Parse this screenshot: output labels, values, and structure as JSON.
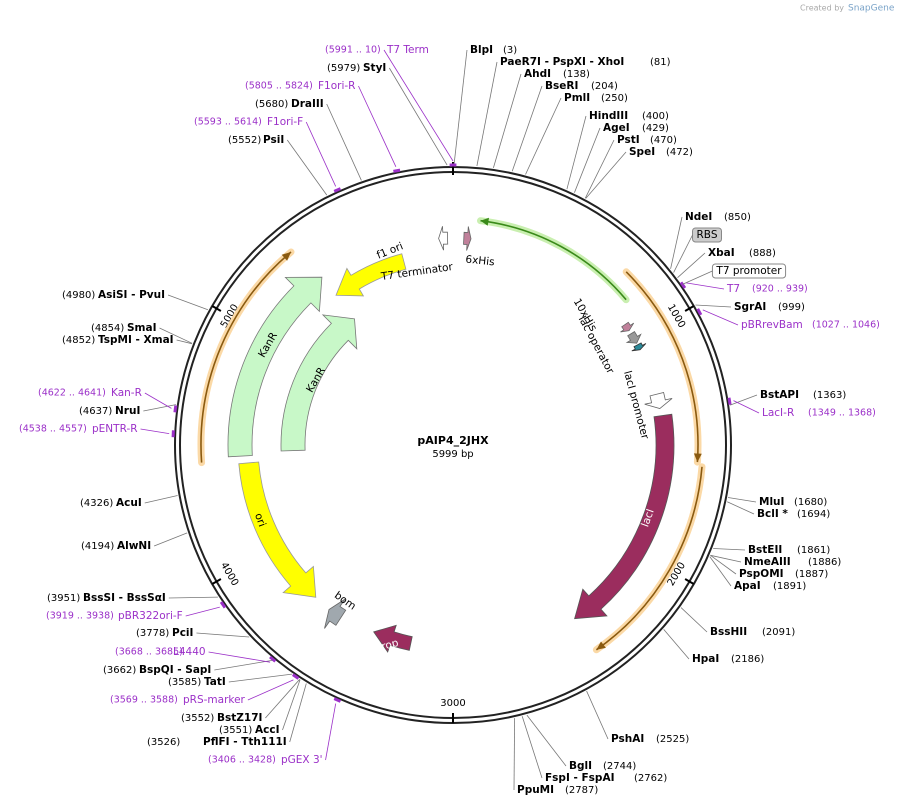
{
  "header": {
    "credit": "Created by",
    "brand": "SnapGene"
  },
  "map": {
    "name": "pAIP4_2JHX",
    "length": "5999 bp"
  },
  "scale_ticks": [
    "1000",
    "2000",
    "3000",
    "4000",
    "5000"
  ],
  "enzymes": [
    {
      "name": "BlpI",
      "pos": "(3)"
    },
    {
      "name": "PaeR7I   - PspXI   - XhoI",
      "pos": "(81)"
    },
    {
      "name": "AhdI",
      "pos": "(138)"
    },
    {
      "name": "BseRI",
      "pos": "(204)"
    },
    {
      "name": "PmlI",
      "pos": "(250)"
    },
    {
      "name": "HindIII",
      "pos": "(400)"
    },
    {
      "name": "AgeI",
      "pos": "(429)"
    },
    {
      "name": "PstI",
      "pos": "(470)"
    },
    {
      "name": "SpeI",
      "pos": "(472)"
    },
    {
      "name": "NdeI",
      "pos": "(850)"
    },
    {
      "name": "XbaI",
      "pos": "(888)"
    },
    {
      "name": "SgrAI",
      "pos": "(999)"
    },
    {
      "name": "BstAPI",
      "pos": "(1363)"
    },
    {
      "name": "MluI",
      "pos": "(1680)"
    },
    {
      "name": "BclI *",
      "pos": "(1694)"
    },
    {
      "name": "BstEII",
      "pos": "(1861)"
    },
    {
      "name": "NmeAIII",
      "pos": "(1886)"
    },
    {
      "name": "PspOMI",
      "pos": "(1887)"
    },
    {
      "name": "ApaI",
      "pos": "(1891)"
    },
    {
      "name": "BssHII",
      "pos": "(2091)"
    },
    {
      "name": "HpaI",
      "pos": "(2186)"
    },
    {
      "name": "PshAI",
      "pos": "(2525)"
    },
    {
      "name": "BglI",
      "pos": "(2744)"
    },
    {
      "name": "FspI   - FspAI",
      "pos": "(2762)"
    },
    {
      "name": "PpuMI",
      "pos": "(2787)"
    },
    {
      "name": "StyI",
      "pos": "(5979)"
    },
    {
      "name": "DraIII",
      "pos": "(5680)"
    },
    {
      "name": "PsiI",
      "pos": "(5552)"
    },
    {
      "name": "AsiSI   - PvuI",
      "pos": "(4980)"
    },
    {
      "name": "SmaI",
      "pos": "(4854)"
    },
    {
      "name": "TspMI   - XmaI",
      "pos": "(4852)"
    },
    {
      "name": "NruI",
      "pos": "(4637)"
    },
    {
      "name": "AcuI",
      "pos": "(4326)"
    },
    {
      "name": "AlwNI",
      "pos": "(4194)"
    },
    {
      "name": "BssSI   - BssSαI",
      "pos": "(3951)"
    },
    {
      "name": "PciI",
      "pos": "(3778)"
    },
    {
      "name": "BspQI   - SapI",
      "pos": "(3662)"
    },
    {
      "name": "TatI",
      "pos": "(3585)"
    },
    {
      "name": "BstZ17I",
      "pos": "(3552)"
    },
    {
      "name": "AccI",
      "pos": "(3551)"
    },
    {
      "name": "PflFI   - Tth111I",
      "pos": "(3526)"
    }
  ],
  "primers": [
    {
      "name": "T7",
      "range": "(920 .. 939)"
    },
    {
      "name": "pBRrevBam",
      "range": "(1027 .. 1046)"
    },
    {
      "name": "LacI-R",
      "range": "(1349 .. 1368)"
    },
    {
      "name": "T7 Term",
      "range": "(5991 .. 10)"
    },
    {
      "name": "F1ori-R",
      "range": "(5805 .. 5824)"
    },
    {
      "name": "F1ori-F",
      "range": "(5593 .. 5614)"
    },
    {
      "name": "Kan-R",
      "range": "(4622 .. 4641)"
    },
    {
      "name": "pENTR-R",
      "range": "(4538 .. 4557)"
    },
    {
      "name": "pBR322ori-F",
      "range": "(3919 .. 3938)"
    },
    {
      "name": "L4440",
      "range": "(3668 .. 3685)"
    },
    {
      "name": "pRS-marker",
      "range": "(3569 .. 3588)"
    },
    {
      "name": "pGEX 3'",
      "range": "(3406 .. 3428)"
    }
  ],
  "features": [
    {
      "label": "f1 ori"
    },
    {
      "label": "T7 terminator"
    },
    {
      "label": "6xHis"
    },
    {
      "label": "10xHis"
    },
    {
      "label": "lac operator"
    },
    {
      "label": "lacI promoter"
    },
    {
      "label": "lacI"
    },
    {
      "label": "KanR"
    },
    {
      "label": "KanR"
    },
    {
      "label": "ori"
    },
    {
      "label": "bom"
    },
    {
      "label": "rop"
    },
    {
      "label": "RBS"
    },
    {
      "label": "T7 promoter"
    }
  ]
}
